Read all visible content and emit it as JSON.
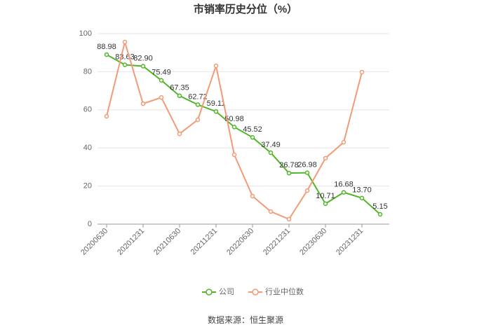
{
  "chart_data": {
    "type": "line",
    "title": "市销率历史分位（%）",
    "categories": [
      "20200630",
      null,
      "20201231",
      null,
      "20210630",
      null,
      "20211231",
      null,
      "20220630",
      null,
      "20221231",
      null,
      "20230630",
      null,
      "20231231",
      null
    ],
    "series": [
      {
        "name": "公司",
        "color": "#52b52a",
        "values": [
          88.98,
          83.63,
          82.9,
          75.49,
          67.35,
          62.72,
          59.11,
          50.98,
          45.52,
          37.49,
          26.78,
          26.98,
          10.71,
          16.68,
          13.7,
          5.15
        ],
        "value_labels": [
          "88.98",
          "83.63",
          "82.90",
          "75.49",
          "67.35",
          "62.72",
          "59.11",
          "50.98",
          "45.52",
          "37.49",
          "26.78",
          "26.98",
          "10.71",
          "16.68",
          "13.70",
          "5.15"
        ]
      },
      {
        "name": "行业中位数",
        "color": "#f29b76",
        "values": [
          56.6,
          95.6,
          63.2,
          66.5,
          47.4,
          54.8,
          83.1,
          36.4,
          14.7,
          6.6,
          2.6,
          17.6,
          34.6,
          43,
          79.8,
          null
        ]
      }
    ],
    "ylim": [
      0,
      100
    ],
    "yticks": [
      0,
      20,
      40,
      60,
      80,
      100
    ],
    "grid": true,
    "source": "数据来源：恒生聚源"
  }
}
